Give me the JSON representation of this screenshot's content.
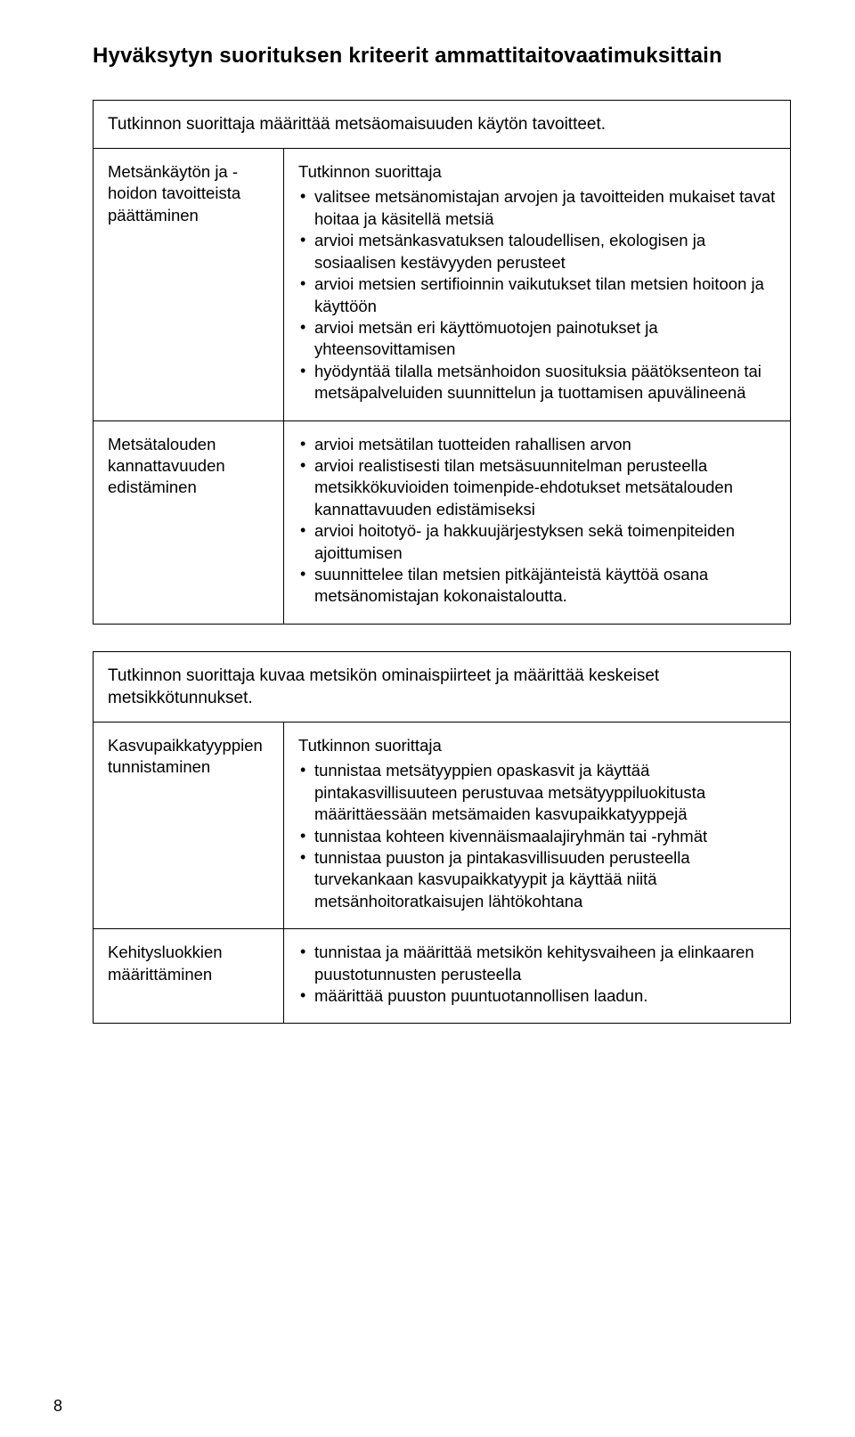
{
  "heading": "Hyväksytyn suorituksen kriteerit ammattitaitovaatimuksittain",
  "table1": {
    "caption": "Tutkinnon suorittaja määrittää metsäomaisuuden käytön tavoitteet.",
    "rows": [
      {
        "left": "Metsänkäytön ja -hoidon tavoitteista päättäminen",
        "lead": "Tutkinnon suorittaja",
        "items": [
          "valitsee metsänomistajan arvojen ja tavoitteiden mukaiset tavat hoitaa ja käsitellä metsiä",
          "arvioi metsänkasvatuksen taloudellisen, ekologisen ja sosiaalisen kestävyyden perusteet",
          "arvioi metsien sertifioinnin vaikutukset tilan metsien hoitoon ja käyttöön",
          "arvioi metsän eri käyttömuotojen painotukset ja yhteensovittamisen",
          "hyödyntää tilalla metsänhoidon suosituksia päätöksenteon tai metsäpalveluiden suunnittelun ja tuottamisen apuvälineenä"
        ]
      },
      {
        "left": "Metsätalouden kannattavuuden edistäminen",
        "lead": "",
        "items": [
          "arvioi metsätilan tuotteiden rahallisen arvon",
          "arvioi realistisesti tilan metsäsuunnitelman perusteella metsikkökuvioiden toimenpide-ehdotukset metsätalouden kannattavuuden edistämiseksi",
          "arvioi hoitotyö- ja hakkuujärjestyksen sekä toimenpiteiden ajoittumisen",
          "suunnittelee tilan metsien pitkäjänteistä käyttöä osana metsänomistajan kokonaistaloutta."
        ]
      }
    ]
  },
  "table2": {
    "caption": "Tutkinnon suorittaja kuvaa metsikön ominaispiirteet ja määrittää keskeiset metsikkötunnukset.",
    "rows": [
      {
        "left": "Kasvupaikkatyyppien tunnistaminen",
        "lead": "Tutkinnon suorittaja",
        "items": [
          "tunnistaa metsätyyppien opaskasvit ja käyttää pintakasvillisuuteen perustuvaa metsätyyppiluokitusta määrittäessään metsämaiden kasvupaikkatyyppejä",
          "tunnistaa kohteen kivennäismaalajiryhmän tai -ryhmät",
          "tunnistaa puuston ja pintakasvillisuuden perusteella turvekankaan kasvupaikkatyypit ja käyttää niitä metsänhoitoratkaisujen lähtökohtana"
        ]
      },
      {
        "left": "Kehitysluokkien määrittäminen",
        "lead": "",
        "items": [
          "tunnistaa ja määrittää metsikön kehitysvaiheen ja elinkaaren puustotunnusten perusteella",
          "määrittää puuston puuntuotannollisen laadun."
        ]
      }
    ]
  },
  "pageNumber": "8"
}
